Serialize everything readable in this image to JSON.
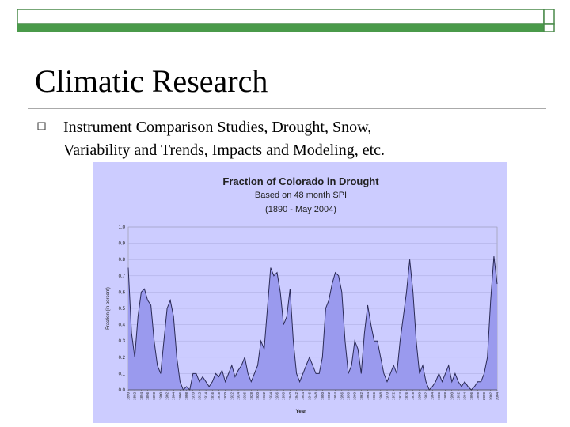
{
  "slide": {
    "title": "Climatic Research",
    "bullets": [
      "Instrument Comparison Studies, Drought, Snow,",
      "Variability and Trends, Impacts and Modeling, etc."
    ]
  },
  "chart_data": {
    "type": "area",
    "title": "Fraction of Colorado in Drought",
    "subtitle": [
      "Based on 48 month SPI",
      "(1890 - May 2004)"
    ],
    "x_label": "Year",
    "y_label": "Fraction (in percent)",
    "color": "#9a9aee",
    "line_color": "#2a2a55",
    "x": [
      1890,
      1891,
      1892,
      1893,
      1894,
      1895,
      1896,
      1897,
      1898,
      1899,
      1900,
      1901,
      1902,
      1903,
      1904,
      1905,
      1906,
      1907,
      1908,
      1909,
      1910,
      1911,
      1912,
      1913,
      1914,
      1915,
      1916,
      1917,
      1918,
      1919,
      1920,
      1921,
      1922,
      1923,
      1924,
      1925,
      1926,
      1927,
      1928,
      1929,
      1930,
      1931,
      1932,
      1933,
      1934,
      1935,
      1936,
      1937,
      1938,
      1939,
      1940,
      1941,
      1942,
      1943,
      1944,
      1945,
      1946,
      1947,
      1948,
      1949,
      1950,
      1951,
      1952,
      1953,
      1954,
      1955,
      1956,
      1957,
      1958,
      1959,
      1960,
      1961,
      1962,
      1963,
      1964,
      1965,
      1966,
      1967,
      1968,
      1969,
      1970,
      1971,
      1972,
      1973,
      1974,
      1975,
      1976,
      1977,
      1978,
      1979,
      1980,
      1981,
      1982,
      1983,
      1984,
      1985,
      1986,
      1987,
      1988,
      1989,
      1990,
      1991,
      1992,
      1993,
      1994,
      1995,
      1996,
      1997,
      1998,
      1999,
      2000,
      2001,
      2002,
      2003,
      2004
    ],
    "values": [
      0.75,
      0.35,
      0.2,
      0.45,
      0.6,
      0.62,
      0.55,
      0.52,
      0.3,
      0.15,
      0.1,
      0.3,
      0.5,
      0.55,
      0.45,
      0.2,
      0.05,
      0.0,
      0.02,
      0.0,
      0.1,
      0.1,
      0.05,
      0.08,
      0.05,
      0.02,
      0.05,
      0.1,
      0.08,
      0.12,
      0.05,
      0.1,
      0.15,
      0.08,
      0.12,
      0.15,
      0.2,
      0.1,
      0.05,
      0.1,
      0.15,
      0.3,
      0.25,
      0.5,
      0.75,
      0.7,
      0.72,
      0.6,
      0.4,
      0.45,
      0.62,
      0.3,
      0.1,
      0.05,
      0.1,
      0.15,
      0.2,
      0.15,
      0.1,
      0.1,
      0.2,
      0.5,
      0.55,
      0.65,
      0.72,
      0.7,
      0.6,
      0.3,
      0.1,
      0.15,
      0.3,
      0.25,
      0.1,
      0.35,
      0.52,
      0.4,
      0.3,
      0.3,
      0.2,
      0.1,
      0.05,
      0.1,
      0.15,
      0.1,
      0.3,
      0.45,
      0.6,
      0.8,
      0.6,
      0.3,
      0.1,
      0.15,
      0.05,
      0.0,
      0.02,
      0.05,
      0.1,
      0.05,
      0.1,
      0.15,
      0.05,
      0.1,
      0.05,
      0.02,
      0.05,
      0.02,
      0.0,
      0.02,
      0.05,
      0.05,
      0.1,
      0.2,
      0.55,
      0.82,
      0.65
    ],
    "xlim": [
      1890,
      2004
    ],
    "xticks": [
      1890,
      1892,
      1894,
      1896,
      1898,
      1900,
      1902,
      1904,
      1906,
      1908,
      1910,
      1912,
      1914,
      1916,
      1918,
      1920,
      1922,
      1924,
      1926,
      1928,
      1930,
      1932,
      1934,
      1936,
      1938,
      1940,
      1942,
      1944,
      1946,
      1948,
      1950,
      1952,
      1954,
      1956,
      1958,
      1960,
      1962,
      1964,
      1966,
      1968,
      1970,
      1972,
      1974,
      1976,
      1978,
      1980,
      1982,
      1984,
      1986,
      1988,
      1990,
      1992,
      1994,
      1996,
      1998,
      2000,
      2002,
      2004
    ],
    "ylim": [
      0,
      1
    ],
    "yticks": [
      {
        "value": 0,
        "label": "0.0"
      },
      {
        "value": 0.1,
        "label": "0.1"
      },
      {
        "value": 0.2,
        "label": "0.2"
      },
      {
        "value": 0.3,
        "label": "0.3"
      },
      {
        "value": 0.4,
        "label": "0.4"
      },
      {
        "value": 0.5,
        "label": "0.5"
      },
      {
        "value": 0.6,
        "label": "0.6"
      },
      {
        "value": 0.7,
        "label": "0.7"
      },
      {
        "value": 0.8,
        "label": "0.8"
      },
      {
        "value": 0.9,
        "label": "0.9"
      },
      {
        "value": 1,
        "label": "1.0"
      }
    ]
  }
}
